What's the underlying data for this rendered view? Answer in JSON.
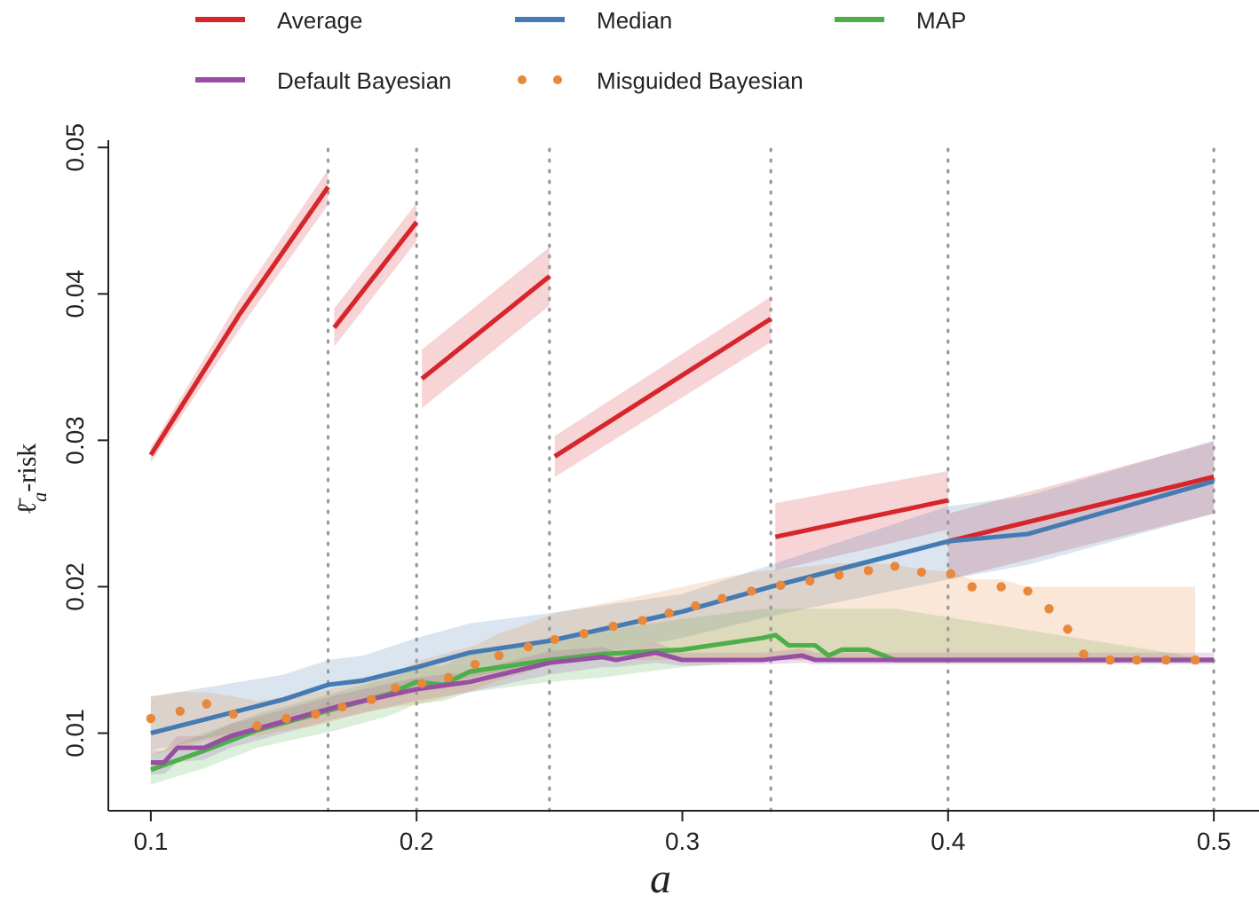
{
  "chart_data": {
    "type": "line",
    "xlabel": "a",
    "ylabel": "ℓ̄$_{a}$-risk",
    "xlim": [
      0.084,
      0.517
    ],
    "ylim": [
      0.0047,
      0.0505
    ],
    "xticks": [
      0.1,
      0.2,
      0.3,
      0.4,
      0.5
    ],
    "yticks": [
      0.01,
      0.02,
      0.03,
      0.04,
      0.05
    ],
    "grid": false,
    "legend": "top",
    "line_style": "solid",
    "ref_lines": [
      {
        "axis": "x",
        "value": 0.1667,
        "color": "#999999",
        "line_style": "dotted"
      },
      {
        "axis": "x",
        "value": 0.2,
        "color": "#999999",
        "line_style": "dotted"
      },
      {
        "axis": "x",
        "value": 0.25,
        "color": "#999999",
        "line_style": "dotted"
      },
      {
        "axis": "x",
        "value": 0.3333,
        "color": "#999999",
        "line_style": "dotted"
      },
      {
        "axis": "x",
        "value": 0.4,
        "color": "#999999",
        "line_style": "dotted"
      },
      {
        "axis": "x",
        "value": 0.5,
        "color": "#999999",
        "line_style": "dotted"
      }
    ],
    "series": [
      {
        "name": "Average",
        "color": "#d7262b",
        "x": [
          0.1,
          0.133,
          0.1667,
          0.168,
          0.169,
          0.2,
          0.201,
          0.202,
          0.25,
          0.251,
          0.252,
          0.3333,
          0.334,
          0.335,
          0.4,
          0.40005,
          0.4001,
          0.5
        ],
        "values": [
          0.029,
          0.0385,
          0.0473,
          null,
          0.0377,
          0.0449,
          null,
          0.0342,
          0.0412,
          null,
          0.0289,
          0.0383,
          null,
          0.0234,
          0.0259,
          null,
          0.0231,
          0.0275
        ],
        "lower": [
          0.0285,
          0.0375,
          0.0461,
          null,
          0.0364,
          0.0436,
          null,
          0.0322,
          0.0392,
          null,
          0.0275,
          0.0367,
          null,
          0.0211,
          0.0239,
          null,
          0.0205,
          0.025
        ],
        "upper": [
          0.0295,
          0.0395,
          0.0485,
          null,
          0.039,
          0.0462,
          null,
          0.0362,
          0.0432,
          null,
          0.0303,
          0.0398,
          null,
          0.0257,
          0.0279,
          null,
          0.025,
          0.0299
        ]
      },
      {
        "name": "Median",
        "color": "#447bb3",
        "x": [
          0.1,
          0.15,
          0.1667,
          0.18,
          0.2,
          0.22,
          0.25,
          0.3,
          0.3333,
          0.4,
          0.43,
          0.5
        ],
        "values": [
          0.01,
          0.0123,
          0.0133,
          0.0136,
          0.0145,
          0.0155,
          0.0163,
          0.0183,
          0.02,
          0.0231,
          0.0236,
          0.0272
        ],
        "lower": [
          0.0088,
          0.0108,
          0.0115,
          0.012,
          0.013,
          0.0138,
          0.0148,
          0.0165,
          0.018,
          0.0205,
          0.0215,
          0.025
        ],
        "upper": [
          0.0125,
          0.014,
          0.015,
          0.0153,
          0.0165,
          0.0175,
          0.0182,
          0.0195,
          0.0215,
          0.0255,
          0.0262,
          0.03
        ]
      },
      {
        "name": "MAP",
        "color": "#4daf4a",
        "x": [
          0.1,
          0.12,
          0.14,
          0.17,
          0.19,
          0.2,
          0.21,
          0.22,
          0.25,
          0.27,
          0.3,
          0.33,
          0.335,
          0.34,
          0.35,
          0.355,
          0.36,
          0.37,
          0.38,
          0.5
        ],
        "values": [
          0.0075,
          0.0088,
          0.0102,
          0.0117,
          0.0127,
          0.0135,
          0.0133,
          0.0142,
          0.015,
          0.0154,
          0.0157,
          0.0165,
          0.0167,
          0.016,
          0.016,
          0.0153,
          0.0157,
          0.0157,
          0.015,
          0.015
        ],
        "lower": [
          0.0065,
          0.0076,
          0.009,
          0.0102,
          0.0112,
          0.012,
          0.0122,
          0.0128,
          0.0135,
          0.0138,
          0.0145,
          0.015,
          0.015,
          0.015,
          0.015,
          0.015,
          0.015,
          0.015,
          0.015,
          0.015
        ],
        "upper": [
          0.0085,
          0.01,
          0.0113,
          0.0128,
          0.0138,
          0.0145,
          0.0146,
          0.0155,
          0.0162,
          0.017,
          0.0178,
          0.0185,
          0.0185,
          0.0185,
          0.0185,
          0.0185,
          0.0185,
          0.0185,
          0.0185,
          0.015
        ]
      },
      {
        "name": "Default Bayesian",
        "color": "#984ea3",
        "x": [
          0.1,
          0.105,
          0.11,
          0.12,
          0.13,
          0.15,
          0.17,
          0.2,
          0.22,
          0.25,
          0.27,
          0.275,
          0.29,
          0.3,
          0.33,
          0.345,
          0.35,
          0.5
        ],
        "values": [
          0.008,
          0.008,
          0.009,
          0.009,
          0.0098,
          0.0108,
          0.0118,
          0.013,
          0.0135,
          0.0148,
          0.0152,
          0.015,
          0.0155,
          0.015,
          0.015,
          0.0153,
          0.015,
          0.015
        ],
        "lower": [
          0.0072,
          0.0072,
          0.008,
          0.0082,
          0.009,
          0.01,
          0.011,
          0.0122,
          0.0128,
          0.014,
          0.0145,
          0.0145,
          0.0148,
          0.0146,
          0.0147,
          0.0148,
          0.0147,
          0.0147
        ],
        "upper": [
          0.0088,
          0.0088,
          0.0098,
          0.0098,
          0.0106,
          0.0116,
          0.0126,
          0.0138,
          0.0142,
          0.0156,
          0.0159,
          0.0156,
          0.0162,
          0.0155,
          0.0155,
          0.0158,
          0.0155,
          0.0155
        ]
      },
      {
        "name": "Misguided Bayesian",
        "type": "scatter",
        "color": "#e8883a",
        "x": [
          0.1,
          0.111,
          0.121,
          0.131,
          0.14,
          0.151,
          0.162,
          0.172,
          0.183,
          0.192,
          0.202,
          0.212,
          0.222,
          0.231,
          0.242,
          0.252,
          0.263,
          0.274,
          0.285,
          0.295,
          0.305,
          0.315,
          0.326,
          0.337,
          0.348,
          0.359,
          0.37,
          0.38,
          0.39,
          0.401,
          0.409,
          0.42,
          0.43,
          0.438,
          0.445,
          0.451,
          0.461,
          0.471,
          0.482,
          0.493
        ],
        "values": [
          0.011,
          0.0115,
          0.012,
          0.0113,
          0.0105,
          0.011,
          0.0113,
          0.0118,
          0.0123,
          0.0131,
          0.0134,
          0.0138,
          0.0147,
          0.0153,
          0.0159,
          0.0164,
          0.0168,
          0.0173,
          0.0177,
          0.0182,
          0.0187,
          0.0192,
          0.0197,
          0.0201,
          0.0204,
          0.0208,
          0.0211,
          0.0214,
          0.021,
          0.0209,
          0.02,
          0.02,
          0.0197,
          0.0185,
          0.0171,
          0.0154,
          0.015,
          0.015,
          0.015,
          0.015
        ],
        "lower": [
          0.0085,
          0.009,
          0.0095,
          0.0098,
          0.0098,
          0.0102,
          0.0105,
          0.011,
          0.0115,
          0.0118,
          0.012,
          0.0125,
          0.013,
          0.0136,
          0.0142,
          0.0148,
          0.015,
          0.015,
          0.015,
          0.015,
          0.015,
          0.015,
          0.015,
          0.015,
          0.015,
          0.015,
          0.015,
          0.015,
          0.015,
          0.015,
          0.015,
          0.015,
          0.015,
          0.015,
          0.015,
          0.015,
          0.015,
          0.015,
          0.015,
          0.015
        ],
        "upper": [
          0.0125,
          0.0128,
          0.0128,
          0.0125,
          0.0122,
          0.0125,
          0.0128,
          0.0132,
          0.0136,
          0.0142,
          0.015,
          0.0155,
          0.016,
          0.0168,
          0.0175,
          0.0182,
          0.0186,
          0.019,
          0.0194,
          0.0198,
          0.0202,
          0.0206,
          0.021,
          0.0212,
          0.0214,
          0.0216,
          0.0216,
          0.0215,
          0.0212,
          0.021,
          0.0205,
          0.0205,
          0.02,
          0.02,
          0.02,
          0.02,
          0.02,
          0.02,
          0.02,
          0.02
        ]
      }
    ]
  }
}
